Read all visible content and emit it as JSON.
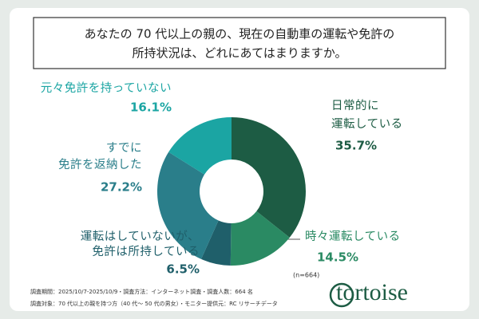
{
  "chart_data": {
    "type": "donut",
    "title": [
      "あなたの 70 代以上の親の、現在の自動車の運転や免許の",
      "所持状況は、どれにあてはまりますか。"
    ],
    "categories": [
      [
        "日常的に",
        "運転している"
      ],
      [
        "時々運転している"
      ],
      [
        "運転はしていないが、",
        "免許は所持している"
      ],
      [
        "すでに",
        "免許を返納した"
      ],
      [
        "元々免許を持っていない"
      ]
    ],
    "values": [
      35.7,
      14.5,
      6.5,
      27.2,
      16.1
    ],
    "value_labels": [
      "35.7%",
      "14.5%",
      "6.5%",
      "27.2%",
      "16.1%"
    ],
    "colors": [
      "#1d5c44",
      "#2a8a63",
      "#1f5f6a",
      "#2a7e8a",
      "#1ba5a3"
    ],
    "sample_note": "(n=664)",
    "footnotes": [
      "調査期間：2025/10/7-2025/10/9・調査方法：インターネット調査・調査人数：664 名",
      "調査対象：70 代以上の親を持つ方（40 代～ 50 代の男女）・モニター提供元：RC リサーチデータ"
    ],
    "logo": "tortoise"
  }
}
